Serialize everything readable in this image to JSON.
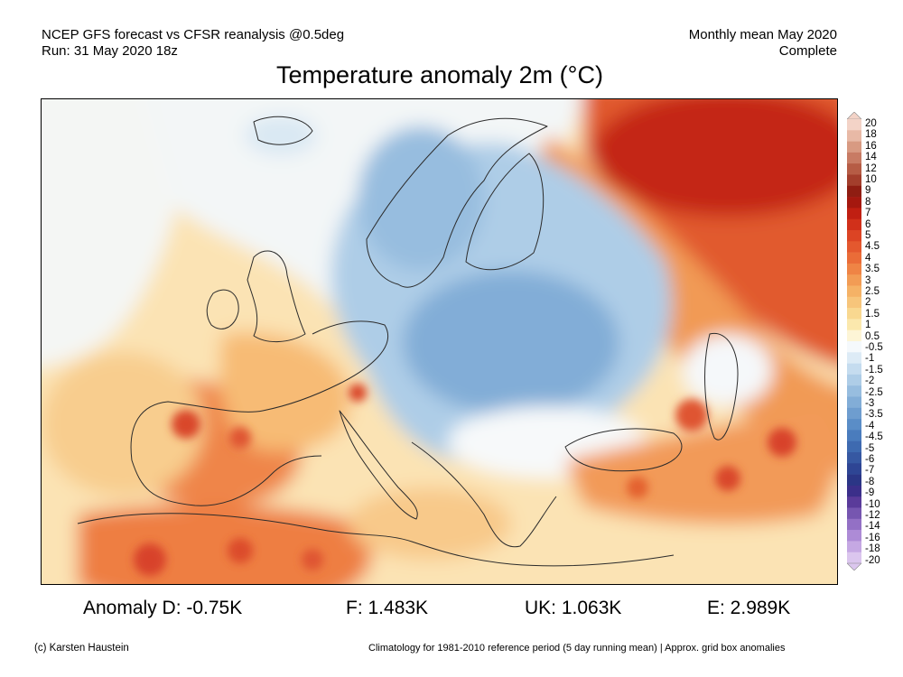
{
  "header": {
    "source_line": "NCEP GFS forecast vs CFSR reanalysis @0.5deg",
    "run_line": "Run: 31 May 2020 18z",
    "period_line": "Monthly mean May 2020",
    "status_line": "Complete"
  },
  "title": "Temperature anomaly 2m (°C)",
  "colorbar": {
    "labels": [
      "20",
      "18",
      "16",
      "14",
      "12",
      "10",
      "9",
      "8",
      "7",
      "6",
      "5",
      "4.5",
      "4",
      "3.5",
      "3",
      "2.5",
      "2",
      "1.5",
      "1",
      "0.5",
      "-0.5",
      "-1",
      "-1.5",
      "-2",
      "-2.5",
      "-3",
      "-3.5",
      "-4",
      "-4.5",
      "-5",
      "-6",
      "-7",
      "-8",
      "-9",
      "-10",
      "-12",
      "-14",
      "-16",
      "-18",
      "-20"
    ],
    "colors": [
      "#f3d3c7",
      "#e8b9a6",
      "#d89a82",
      "#c87b64",
      "#b65c45",
      "#a33e2c",
      "#8f1d12",
      "#a5180f",
      "#c01f12",
      "#d1301a",
      "#dc4424",
      "#e4582e",
      "#ea6c38",
      "#ef8445",
      "#f29c55",
      "#f5b266",
      "#f7c57b",
      "#f9d890",
      "#fbe8ad",
      "#fdf5d6",
      "#f5f9fc",
      "#ddebf6",
      "#c5dcef",
      "#aecde7",
      "#97bddf",
      "#82add7",
      "#6e9dcf",
      "#5a8dc7",
      "#4a7cbd",
      "#3e6ab0",
      "#3658a2",
      "#2e4594",
      "#2b3686",
      "#3b2f8a",
      "#5a3b9a",
      "#7656b0",
      "#9370c5",
      "#ad8bd6",
      "#c5a8e3",
      "#dbc6ee"
    ]
  },
  "stats": {
    "d": "Anomaly D: -0.75K",
    "f": "F: 1.483K",
    "uk": "UK: 1.063K",
    "e": "E: 2.989K"
  },
  "footer": {
    "credit": "(c) Karsten Haustein",
    "note": "Climatology for 1981-2010 reference period (5 day running mean) | Approx. grid box anomalies"
  }
}
